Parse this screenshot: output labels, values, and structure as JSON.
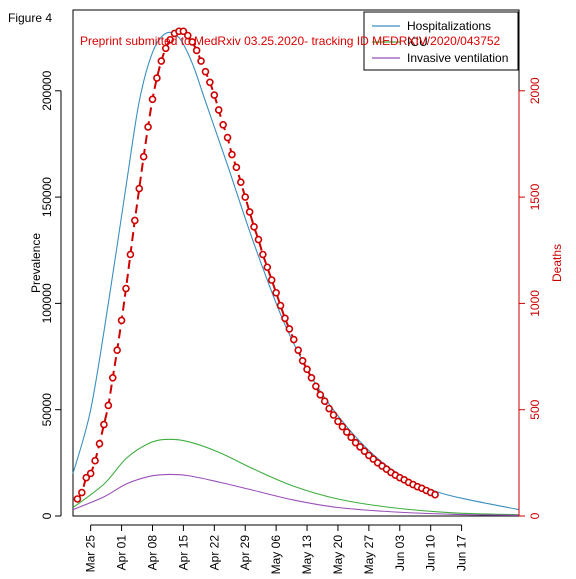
{
  "figure_label": "Figure 4",
  "watermark": "Preprint submitted to MedRxiv 03.25.2020- tracking ID MEDRXIV/2020/043752",
  "colors": {
    "hospitalizations": "#3a8fbf",
    "icu": "#3fae3f",
    "ventilation": "#9a4fb8",
    "deaths": "#cc0000"
  },
  "chart_data": {
    "type": "line",
    "title": "",
    "xlabel": "",
    "ylabel": "Prevalence",
    "y2label": "Deaths",
    "x_ticks": [
      {
        "label": "Mar 25",
        "date": "2020-03-25"
      },
      {
        "label": "Apr 01",
        "date": "2020-04-01"
      },
      {
        "label": "Apr 08",
        "date": "2020-04-08"
      },
      {
        "label": "Apr 15",
        "date": "2020-04-15"
      },
      {
        "label": "Apr 22",
        "date": "2020-04-22"
      },
      {
        "label": "Apr 29",
        "date": "2020-04-29"
      },
      {
        "label": "May 06",
        "date": "2020-05-06"
      },
      {
        "label": "May 13",
        "date": "2020-05-13"
      },
      {
        "label": "May 20",
        "date": "2020-05-20"
      },
      {
        "label": "May 27",
        "date": "2020-05-27"
      },
      {
        "label": "Jun 03",
        "date": "2020-06-03"
      },
      {
        "label": "Jun 10",
        "date": "2020-06-10"
      },
      {
        "label": "Jun 17",
        "date": "2020-06-17"
      }
    ],
    "xlim": [
      "2020-03-21",
      "2020-06-30"
    ],
    "y_ticks": [
      0,
      50000,
      100000,
      150000,
      200000
    ],
    "y_tick_labels": [
      "0",
      "50000",
      "100000",
      "150000",
      "200000"
    ],
    "ylim": [
      0,
      238000
    ],
    "y2_ticks": [
      0,
      500,
      1000,
      1500,
      2000
    ],
    "y2_tick_labels": [
      "0",
      "500",
      "1000",
      "1500",
      "2000"
    ],
    "y2lim": [
      0,
      2380
    ],
    "legend": {
      "position": "top-right",
      "entries": [
        "Hospitalizations",
        "ICU",
        "Invasive ventilation"
      ]
    },
    "series": [
      {
        "name": "Hospitalizations",
        "axis": "left",
        "x": [
          "2020-03-21",
          "2020-03-25",
          "2020-03-29",
          "2020-04-02",
          "2020-04-05",
          "2020-04-08",
          "2020-04-11",
          "2020-04-14",
          "2020-04-17",
          "2020-04-20",
          "2020-04-25",
          "2020-05-01",
          "2020-05-08",
          "2020-05-15",
          "2020-05-22",
          "2020-05-29",
          "2020-06-05",
          "2020-06-12",
          "2020-06-19",
          "2020-06-30"
        ],
        "values": [
          20000,
          50000,
          100000,
          155000,
          195000,
          218000,
          227000,
          225000,
          213000,
          195000,
          165000,
          128000,
          90000,
          62000,
          42000,
          27000,
          17000,
          11000,
          7500,
          3000
        ]
      },
      {
        "name": "ICU",
        "axis": "left",
        "x": [
          "2020-03-21",
          "2020-03-28",
          "2020-04-02",
          "2020-04-07",
          "2020-04-11",
          "2020-04-16",
          "2020-04-23",
          "2020-05-01",
          "2020-05-10",
          "2020-05-20",
          "2020-06-01",
          "2020-06-15",
          "2020-06-30"
        ],
        "values": [
          4000,
          15000,
          27000,
          34000,
          36000,
          35000,
          30000,
          22000,
          14000,
          8000,
          4000,
          1500,
          600
        ]
      },
      {
        "name": "Invasive ventilation",
        "axis": "left",
        "x": [
          "2020-03-21",
          "2020-03-28",
          "2020-04-02",
          "2020-04-07",
          "2020-04-11",
          "2020-04-16",
          "2020-04-23",
          "2020-05-01",
          "2020-05-10",
          "2020-05-20",
          "2020-06-01",
          "2020-06-15",
          "2020-06-30"
        ],
        "values": [
          3000,
          9000,
          15000,
          18500,
          19500,
          19000,
          16000,
          12000,
          7500,
          4000,
          2000,
          800,
          300
        ]
      },
      {
        "name": "",
        "axis": "right",
        "style": "dashed-points",
        "x": [
          "2020-03-22",
          "2020-03-23",
          "2020-03-24",
          "2020-03-25",
          "2020-03-26",
          "2020-03-27",
          "2020-03-28",
          "2020-03-29",
          "2020-03-30",
          "2020-03-31",
          "2020-04-01",
          "2020-04-02",
          "2020-04-03",
          "2020-04-04",
          "2020-04-05",
          "2020-04-06",
          "2020-04-07",
          "2020-04-08",
          "2020-04-09",
          "2020-04-10",
          "2020-04-11",
          "2020-04-12",
          "2020-04-13",
          "2020-04-14",
          "2020-04-15",
          "2020-04-16",
          "2020-04-17",
          "2020-04-18",
          "2020-04-19",
          "2020-04-20",
          "2020-04-21",
          "2020-04-22",
          "2020-04-23",
          "2020-04-24",
          "2020-04-25",
          "2020-04-26",
          "2020-04-27",
          "2020-04-28",
          "2020-04-29",
          "2020-04-30",
          "2020-05-01",
          "2020-05-02",
          "2020-05-03",
          "2020-05-04",
          "2020-05-05",
          "2020-05-06",
          "2020-05-07",
          "2020-05-08",
          "2020-05-09",
          "2020-05-10",
          "2020-05-11",
          "2020-05-12",
          "2020-05-13",
          "2020-05-14",
          "2020-05-15",
          "2020-05-16",
          "2020-05-17",
          "2020-05-18",
          "2020-05-19",
          "2020-05-20",
          "2020-05-21",
          "2020-05-22",
          "2020-05-23",
          "2020-05-24",
          "2020-05-25",
          "2020-05-26",
          "2020-05-27",
          "2020-05-28",
          "2020-05-29",
          "2020-05-30",
          "2020-05-31",
          "2020-06-01",
          "2020-06-02",
          "2020-06-03",
          "2020-06-04",
          "2020-06-05",
          "2020-06-06",
          "2020-06-07",
          "2020-06-08",
          "2020-06-09",
          "2020-06-10",
          "2020-06-11"
        ],
        "values": [
          80,
          110,
          180,
          200,
          260,
          340,
          430,
          520,
          650,
          780,
          920,
          1070,
          1230,
          1390,
          1540,
          1690,
          1830,
          1960,
          2060,
          2140,
          2200,
          2240,
          2270,
          2280,
          2280,
          2260,
          2230,
          2190,
          2140,
          2090,
          2040,
          1980,
          1910,
          1840,
          1780,
          1700,
          1640,
          1570,
          1500,
          1430,
          1360,
          1300,
          1230,
          1170,
          1110,
          1050,
          990,
          930,
          880,
          830,
          780,
          730,
          690,
          650,
          610,
          570,
          540,
          505,
          475,
          445,
          420,
          395,
          370,
          345,
          325,
          305,
          285,
          268,
          250,
          235,
          220,
          205,
          192,
          180,
          170,
          158,
          148,
          138,
          130,
          120,
          110,
          100
        ]
      }
    ]
  }
}
